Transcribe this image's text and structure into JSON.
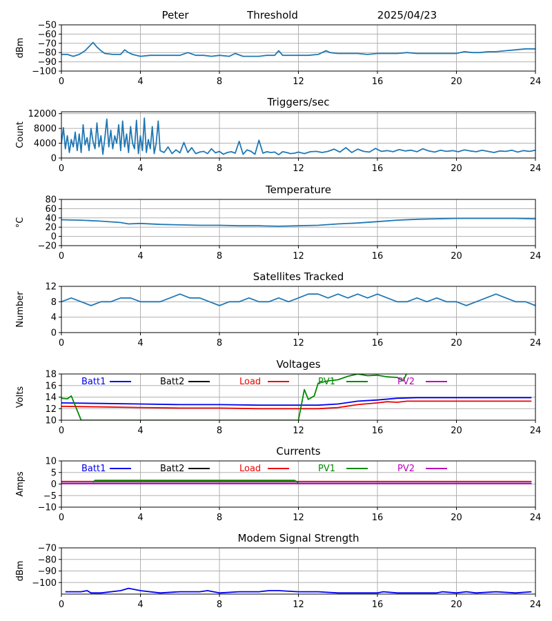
{
  "header": {
    "site": "Peter",
    "label": "Threshold",
    "date": "2025/04/23"
  },
  "chart_data": [
    {
      "type": "line",
      "title": "",
      "ylabel": "dBm",
      "xlim": [
        0,
        24
      ],
      "xticks": [
        0,
        4,
        8,
        12,
        16,
        20,
        24
      ],
      "ylim": [
        -100,
        -50
      ],
      "yticks": [
        -100,
        -90,
        -80,
        -70,
        -60,
        -50
      ],
      "grid": true,
      "series": [
        {
          "color": "#1f77b4",
          "x": [
            0,
            0.3,
            0.6,
            0.9,
            1.2,
            1.6,
            1.8,
            2.0,
            2.2,
            2.6,
            3.0,
            3.2,
            3.4,
            3.6,
            4.0,
            4.5,
            5.0,
            5.5,
            6.0,
            6.4,
            6.8,
            7.2,
            7.6,
            8.0,
            8.5,
            8.8,
            9.2,
            9.6,
            10.0,
            10.4,
            10.8,
            11.0,
            11.2,
            11.6,
            12.0,
            12.5,
            13.0,
            13.4,
            13.6,
            14.0,
            14.5,
            15.0,
            15.5,
            16.0,
            16.5,
            17.0,
            17.5,
            18.0,
            18.5,
            19.0,
            19.5,
            20.0,
            20.4,
            20.8,
            21.2,
            21.6,
            22.0,
            22.5,
            23.0,
            23.5,
            24.0
          ],
          "y": [
            -82,
            -82,
            -84,
            -82,
            -78,
            -69,
            -74,
            -78,
            -81,
            -82,
            -82,
            -77,
            -80,
            -82,
            -84,
            -83,
            -83,
            -83,
            -83,
            -80,
            -83,
            -83,
            -84,
            -83,
            -84,
            -81,
            -84,
            -84,
            -84,
            -83,
            -83,
            -78,
            -83,
            -83,
            -83,
            -83,
            -82,
            -78,
            -80,
            -81,
            -81,
            -81,
            -82,
            -81,
            -81,
            -81,
            -80,
            -81,
            -81,
            -81,
            -81,
            -81,
            -79,
            -80,
            -80,
            -79,
            -79,
            -78,
            -77,
            -76,
            -76
          ]
        }
      ]
    },
    {
      "type": "line",
      "title": "Triggers/sec",
      "ylabel": "Count",
      "xlim": [
        0,
        24
      ],
      "xticks": [
        0,
        4,
        8,
        12,
        16,
        20,
        24
      ],
      "ylim": [
        0,
        12500
      ],
      "yticks": [
        0,
        4000,
        8000,
        12000
      ],
      "grid": true,
      "series": [
        {
          "color": "#1f77b4",
          "x": [
            0,
            0.1,
            0.2,
            0.3,
            0.4,
            0.5,
            0.6,
            0.7,
            0.8,
            0.9,
            1.0,
            1.1,
            1.2,
            1.3,
            1.4,
            1.5,
            1.6,
            1.7,
            1.8,
            1.9,
            2.0,
            2.1,
            2.2,
            2.3,
            2.4,
            2.5,
            2.6,
            2.7,
            2.8,
            2.9,
            3.0,
            3.1,
            3.2,
            3.3,
            3.4,
            3.5,
            3.6,
            3.7,
            3.8,
            3.9,
            4.0,
            4.1,
            4.2,
            4.3,
            4.4,
            4.5,
            4.6,
            4.7,
            4.8,
            4.9,
            5.0,
            5.2,
            5.4,
            5.6,
            5.8,
            6.0,
            6.2,
            6.4,
            6.6,
            6.8,
            7.0,
            7.2,
            7.4,
            7.6,
            7.8,
            8.0,
            8.2,
            8.4,
            8.6,
            8.8,
            9.0,
            9.2,
            9.4,
            9.6,
            9.8,
            10.0,
            10.2,
            10.4,
            10.6,
            10.8,
            11.0,
            11.2,
            11.4,
            11.6,
            11.8,
            12.0,
            12.3,
            12.6,
            12.9,
            13.2,
            13.5,
            13.8,
            14.1,
            14.4,
            14.7,
            15.0,
            15.3,
            15.6,
            15.9,
            16.2,
            16.5,
            16.8,
            17.1,
            17.4,
            17.7,
            18.0,
            18.3,
            18.6,
            18.9,
            19.2,
            19.5,
            19.8,
            20.1,
            20.4,
            20.7,
            21.0,
            21.3,
            21.6,
            21.9,
            22.2,
            22.5,
            22.8,
            23.1,
            23.4,
            23.7,
            24.0
          ],
          "y": [
            4000,
            8200,
            2500,
            6000,
            1500,
            5000,
            3000,
            7000,
            2000,
            6500,
            1500,
            9000,
            3500,
            5500,
            2000,
            8000,
            4500,
            2500,
            9500,
            3000,
            6000,
            1000,
            5500,
            10500,
            3000,
            7500,
            2500,
            6000,
            4000,
            9000,
            2000,
            10000,
            3000,
            6500,
            1500,
            8500,
            4000,
            2500,
            10200,
            1200,
            6000,
            2000,
            10800,
            1500,
            5000,
            2500,
            8500,
            1200,
            4000,
            10000,
            2000,
            1500,
            3000,
            1200,
            2200,
            1400,
            4200,
            1500,
            2800,
            1200,
            1600,
            1800,
            1200,
            2500,
            1400,
            1800,
            1000,
            1500,
            1700,
            1300,
            4500,
            1000,
            2200,
            1800,
            1000,
            4800,
            1300,
            1700,
            1500,
            1600,
            900,
            1700,
            1500,
            1200,
            1300,
            1600,
            1200,
            1700,
            1800,
            1500,
            1800,
            2400,
            1600,
            2800,
            1500,
            2400,
            1800,
            1600,
            2600,
            1800,
            2000,
            1700,
            2300,
            1900,
            2100,
            1700,
            2500,
            1900,
            1600,
            2100,
            1800,
            2000,
            1700,
            2200,
            1900,
            1700,
            2100,
            1800,
            1500,
            1900,
            1800,
            2100,
            1600,
            2000,
            1800,
            2100
          ]
        }
      ]
    },
    {
      "type": "line",
      "title": "Temperature",
      "ylabel": "°C",
      "xlim": [
        0,
        24
      ],
      "xticks": [
        0,
        4,
        8,
        12,
        16,
        20,
        24
      ],
      "ylim": [
        -20,
        80
      ],
      "yticks": [
        -20,
        0,
        20,
        40,
        60,
        80
      ],
      "grid": true,
      "series": [
        {
          "color": "#1f77b4",
          "x": [
            0,
            1,
            2,
            3,
            3.4,
            4,
            5,
            6,
            7,
            8,
            9,
            10,
            11,
            12,
            13,
            14,
            15,
            16,
            17,
            18,
            19,
            20,
            21,
            22,
            23,
            24
          ],
          "y": [
            36,
            35,
            33,
            30,
            27,
            28,
            26,
            25,
            24,
            24,
            23,
            23,
            22,
            23,
            24,
            27,
            29,
            32,
            35,
            37,
            38,
            39,
            39,
            39,
            39,
            38
          ]
        }
      ]
    },
    {
      "type": "line",
      "title": "Satellites Tracked",
      "ylabel": "Number",
      "xlim": [
        0,
        24
      ],
      "xticks": [
        0,
        4,
        8,
        12,
        16,
        20,
        24
      ],
      "ylim": [
        0,
        12
      ],
      "yticks": [
        0,
        4,
        8,
        12
      ],
      "grid": true,
      "series": [
        {
          "color": "#1f77b4",
          "x": [
            0,
            0.5,
            1,
            1.5,
            2,
            2.5,
            3,
            3.5,
            4,
            4.5,
            5,
            5.5,
            6,
            6.5,
            7,
            7.5,
            8,
            8.5,
            9,
            9.5,
            10,
            10.5,
            11,
            11.5,
            12,
            12.5,
            13,
            13.5,
            14,
            14.5,
            15,
            15.5,
            16,
            16.5,
            17,
            17.5,
            18,
            18.5,
            19,
            19.5,
            20,
            20.5,
            21,
            21.5,
            22,
            22.5,
            23,
            23.5,
            24
          ],
          "y": [
            8,
            9,
            8,
            7,
            8,
            8,
            9,
            9,
            8,
            8,
            8,
            9,
            10,
            9,
            9,
            8,
            7,
            8,
            8,
            9,
            8,
            8,
            9,
            8,
            9,
            10,
            10,
            9,
            10,
            9,
            10,
            9,
            10,
            9,
            8,
            8,
            9,
            8,
            9,
            8,
            8,
            7,
            8,
            9,
            10,
            9,
            8,
            8,
            7
          ]
        }
      ]
    },
    {
      "type": "line",
      "title": "Voltages",
      "ylabel": "Volts",
      "xlim": [
        0,
        24
      ],
      "xticks": [
        0,
        4,
        8,
        12,
        16,
        20,
        24
      ],
      "ylim": [
        10,
        18
      ],
      "yticks": [
        10,
        12,
        14,
        16,
        18
      ],
      "grid": true,
      "legend": [
        "Batt1",
        "Batt2",
        "Load",
        "PV1",
        "PV2"
      ],
      "series": [
        {
          "name": "Batt1",
          "color": "#0000ee",
          "x": [
            0,
            2,
            4,
            6,
            8,
            10,
            12,
            13,
            14,
            15,
            16,
            17,
            18,
            20,
            22,
            23.8
          ],
          "y": [
            13.0,
            12.9,
            12.8,
            12.7,
            12.7,
            12.6,
            12.6,
            12.6,
            12.8,
            13.3,
            13.5,
            13.8,
            13.9,
            13.9,
            13.9,
            13.9
          ]
        },
        {
          "name": "Batt2",
          "color": "#000000",
          "x": [],
          "y": []
        },
        {
          "name": "Load",
          "color": "#ee0000",
          "x": [
            0,
            2,
            4,
            6,
            8,
            10,
            12,
            13,
            14,
            15,
            16,
            16.5,
            17,
            17.5,
            18,
            20,
            22,
            23.8
          ],
          "y": [
            12.4,
            12.3,
            12.2,
            12.1,
            12.1,
            12.0,
            12.0,
            12.0,
            12.2,
            12.7,
            13.0,
            13.2,
            13.1,
            13.3,
            13.3,
            13.3,
            13.3,
            13.3
          ]
        },
        {
          "name": "PV1",
          "color": "#008800",
          "x": [
            0,
            0.3,
            0.5,
            1.0,
            12.0,
            12.3,
            12.5,
            12.8,
            13.0,
            13.5,
            14,
            14.5,
            15,
            15.5,
            16,
            16.5,
            17,
            17.3,
            17.5
          ],
          "y": [
            13.8,
            13.7,
            14.2,
            10.0,
            10.0,
            15.3,
            13.6,
            14.2,
            16.4,
            16.8,
            17.0,
            17.6,
            18.0,
            17.7,
            17.8,
            17.5,
            17.4,
            16.8,
            18.2
          ]
        },
        {
          "name": "PV2",
          "color": "#bb00bb",
          "x": [],
          "y": []
        }
      ]
    },
    {
      "type": "line",
      "title": "Currents",
      "ylabel": "Amps",
      "xlim": [
        0,
        24
      ],
      "xticks": [
        0,
        4,
        8,
        12,
        16,
        20,
        24
      ],
      "ylim": [
        -10,
        10
      ],
      "yticks": [
        -10,
        -5,
        0,
        5,
        10
      ],
      "grid": true,
      "legend": [
        "Batt1",
        "Batt2",
        "Load",
        "PV1",
        "PV2"
      ],
      "series": [
        {
          "name": "Batt1",
          "color": "#0000ee",
          "x": [
            0,
            23.8
          ],
          "y": [
            0.3,
            0.3
          ]
        },
        {
          "name": "Batt2",
          "color": "#000000",
          "x": [],
          "y": []
        },
        {
          "name": "Load",
          "color": "#ee0000",
          "x": [
            0,
            23.8
          ],
          "y": [
            1.1,
            1.1
          ]
        },
        {
          "name": "PV1",
          "color": "#008800",
          "x": [
            1.6,
            1.7,
            11.8,
            12.0
          ],
          "y": [
            0.8,
            1.6,
            1.6,
            0.6
          ]
        },
        {
          "name": "PV2",
          "color": "#bb00bb",
          "x": [
            0,
            23.8
          ],
          "y": [
            0.2,
            0.2
          ]
        }
      ]
    },
    {
      "type": "line",
      "title": "Modem Signal Strength",
      "ylabel": "dBm",
      "xlim": [
        0,
        24
      ],
      "xticks": [
        0,
        4,
        8,
        12,
        16,
        20,
        24
      ],
      "ylim": [
        -110,
        -70
      ],
      "yticks": [
        -100,
        -90,
        -80,
        -70
      ],
      "grid": true,
      "series": [
        {
          "color": "#0000ee",
          "x": [
            0.2,
            1,
            1.3,
            1.5,
            2,
            3,
            3.4,
            4,
            5,
            6,
            7,
            7.4,
            8,
            9,
            10,
            10.5,
            11,
            12,
            13,
            14,
            15,
            16,
            16.3,
            17,
            18,
            19,
            19.3,
            20,
            20.5,
            21,
            22,
            23,
            23.8
          ],
          "y": [
            -108,
            -108,
            -107,
            -109,
            -109,
            -107,
            -105,
            -107,
            -109,
            -108,
            -108,
            -107,
            -109,
            -108,
            -108,
            -107,
            -107,
            -108,
            -108,
            -109,
            -109,
            -109,
            -108,
            -109,
            -109,
            -109,
            -108,
            -109,
            -108,
            -109,
            -108,
            -109,
            -108
          ]
        }
      ]
    }
  ]
}
